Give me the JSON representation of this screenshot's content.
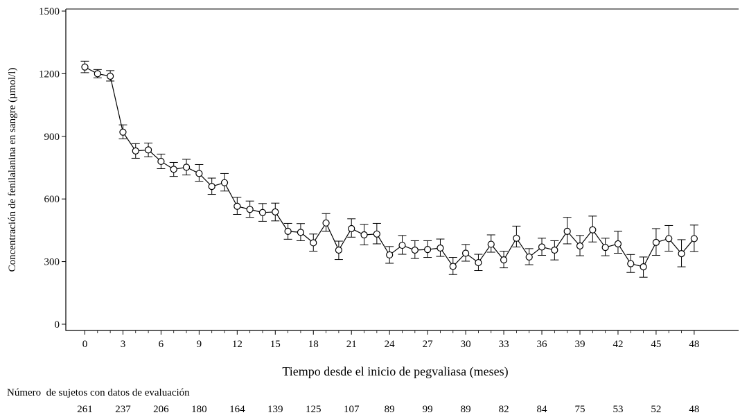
{
  "chart_data": {
    "type": "line",
    "xlabel": "Tiempo desde el inicio de pegvaliasa (meses)",
    "ylabel": "Concentración de fenilalanina en sangre (µmol/l)",
    "xlim": [
      -1.5,
      51.5
    ],
    "ylim": [
      -30,
      1510
    ],
    "x_ticks": [
      0,
      3,
      6,
      9,
      12,
      15,
      18,
      21,
      24,
      27,
      30,
      33,
      36,
      39,
      42,
      45,
      48
    ],
    "y_ticks": [
      0,
      300,
      600,
      900,
      1200,
      1500
    ],
    "grid": false,
    "marker": "open-circle",
    "error_bars": true,
    "series": [
      {
        "x": [
          0,
          1,
          2,
          3,
          4,
          5,
          6,
          7,
          8,
          9,
          10,
          11,
          12,
          13,
          14,
          15,
          16,
          17,
          18,
          19,
          20,
          21,
          22,
          23,
          24,
          25,
          26,
          27,
          28,
          29,
          30,
          31,
          32,
          33,
          34,
          35,
          36,
          37,
          38,
          39,
          40,
          41,
          42,
          43,
          44,
          45,
          46,
          47,
          48
        ],
        "y": [
          1232,
          1200,
          1188,
          920,
          830,
          835,
          780,
          742,
          752,
          722,
          660,
          678,
          565,
          550,
          535,
          538,
          445,
          440,
          390,
          485,
          355,
          458,
          428,
          432,
          332,
          378,
          355,
          358,
          365,
          277,
          340,
          295,
          383,
          308,
          412,
          322,
          370,
          355,
          445,
          375,
          452,
          368,
          385,
          290,
          275,
          392,
          410,
          338,
          410
        ],
        "err_low": [
          1205,
          1180,
          1165,
          888,
          795,
          802,
          745,
          708,
          715,
          685,
          622,
          638,
          526,
          512,
          493,
          495,
          407,
          400,
          350,
          445,
          310,
          417,
          380,
          385,
          292,
          335,
          315,
          320,
          325,
          238,
          302,
          257,
          345,
          270,
          370,
          285,
          330,
          308,
          385,
          328,
          394,
          328,
          340,
          248,
          225,
          330,
          350,
          275,
          348
        ],
        "err_high": [
          1260,
          1220,
          1215,
          955,
          865,
          868,
          815,
          775,
          790,
          765,
          700,
          722,
          608,
          590,
          578,
          580,
          483,
          482,
          432,
          530,
          398,
          505,
          478,
          483,
          372,
          425,
          400,
          400,
          408,
          320,
          382,
          335,
          428,
          350,
          470,
          362,
          412,
          400,
          512,
          425,
          518,
          412,
          445,
          334,
          322,
          458,
          473,
          405,
          475
        ]
      }
    ],
    "subjects_title": "Número  de sujetos con datos de evaluación",
    "subjects_counts": [
      "261",
      "237",
      "206",
      "180",
      "164",
      "139",
      "125",
      "107",
      "89",
      "99",
      "89",
      "82",
      "84",
      "75",
      "53",
      "52",
      "48"
    ]
  }
}
